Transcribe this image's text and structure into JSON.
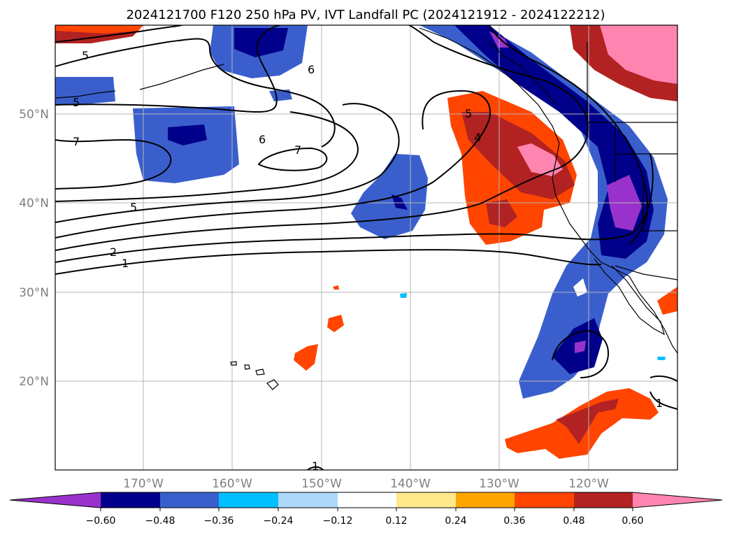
{
  "title": "2024121700 F120 250 hPa PV, IVT Landfall PC (2024121912 - 2024122212)",
  "lat_labels": [
    "50°N",
    "40°N",
    "30°N",
    "20°N"
  ],
  "lon_labels": [
    "170°W",
    "160°W",
    "150°W",
    "140°W",
    "130°W",
    "120°W"
  ],
  "colorbar": {
    "ticks": [
      "−0.60",
      "−0.48",
      "−0.36",
      "−0.24",
      "−0.12",
      "0.12",
      "0.24",
      "0.36",
      "0.48",
      "0.60"
    ],
    "colors": [
      "#9932cc",
      "#00008b",
      "#3a5fcd",
      "#00bfff",
      "#add8f8",
      "#ffffff",
      "#ffe98a",
      "#ffa500",
      "#ff4500",
      "#b22222",
      "#ff85b0"
    ]
  },
  "contour_labels": [
    "5",
    "5",
    "7",
    "6",
    "7",
    "6",
    "5",
    "2",
    "1",
    "5",
    "4",
    "1",
    "1"
  ],
  "map": {
    "projection": "PlateCarree",
    "lon_range": [
      -180,
      -110
    ],
    "lat_range": [
      10,
      60
    ],
    "grid_lons": [
      -170,
      -160,
      -150,
      -140,
      -130,
      -120
    ],
    "grid_lats": [
      20,
      30,
      40,
      50
    ]
  }
}
